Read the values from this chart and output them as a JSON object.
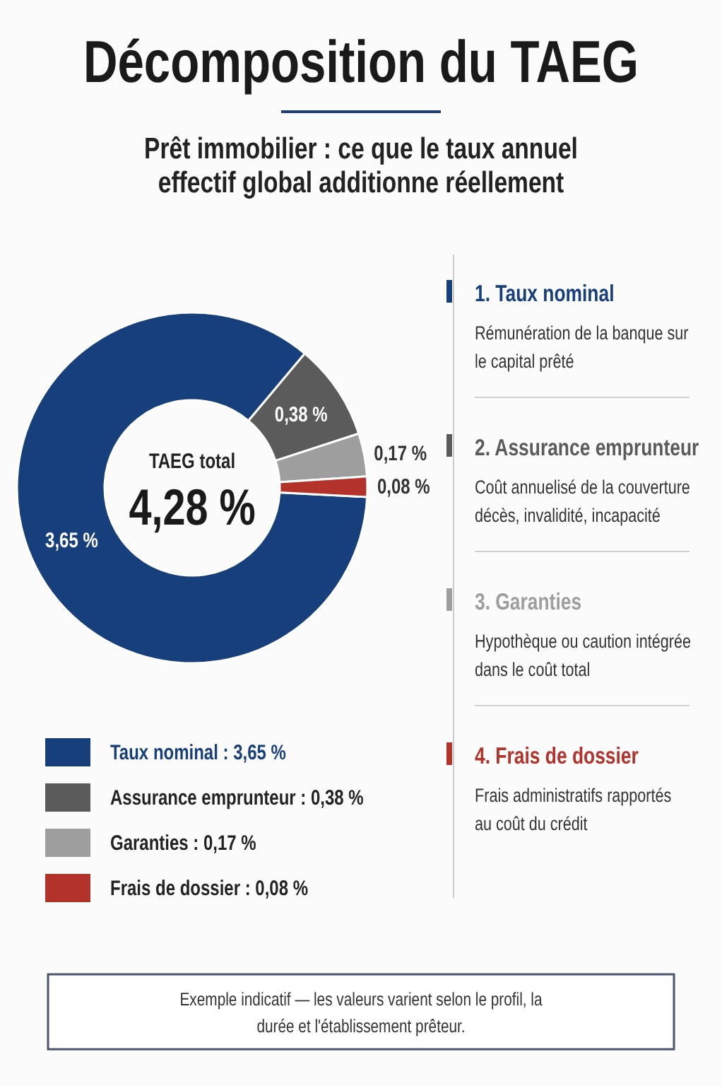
{
  "chart_data": {
    "type": "donut",
    "title": "Décomposition du TAEG",
    "subtitle": "Prêt immobilier : ce que le taux annuel effectif global additionne réellement",
    "categories": [
      "Taux nominal : 3,65 %",
      "Assurance emprunteur : 0,38 %",
      "Garanties : 0,17 %",
      "Frais de dossier : 0,08 %"
    ],
    "values": [
      3.65,
      0.38,
      0.17,
      0.08
    ],
    "colors": [
      "#173f7b",
      "#5b5b5b",
      "#9e9e9e",
      "#b3322b"
    ],
    "value_labels": [
      "3,65 %",
      "0,38 %",
      "0,17 %",
      "0,08 %"
    ],
    "legend": "bottom",
    "annotations": [
      "TAEG total",
      "4,28 %",
      "1. Taux nominal",
      "Rémunération de la banque sur le capital prêté",
      "2. Assurance emprunteur",
      "Coût annuelisé de la couverture décès, invalidité, incapacité",
      "3. Garanties",
      "Hypothèque ou caution intégrée dans le coût total",
      "4. Frais de dossier",
      "Frais administratifs rapportés au coût du crédit",
      "Exemple indicatif — les valeurs varient selon le profil, la durée et l'établissement prêteur."
    ]
  }
}
